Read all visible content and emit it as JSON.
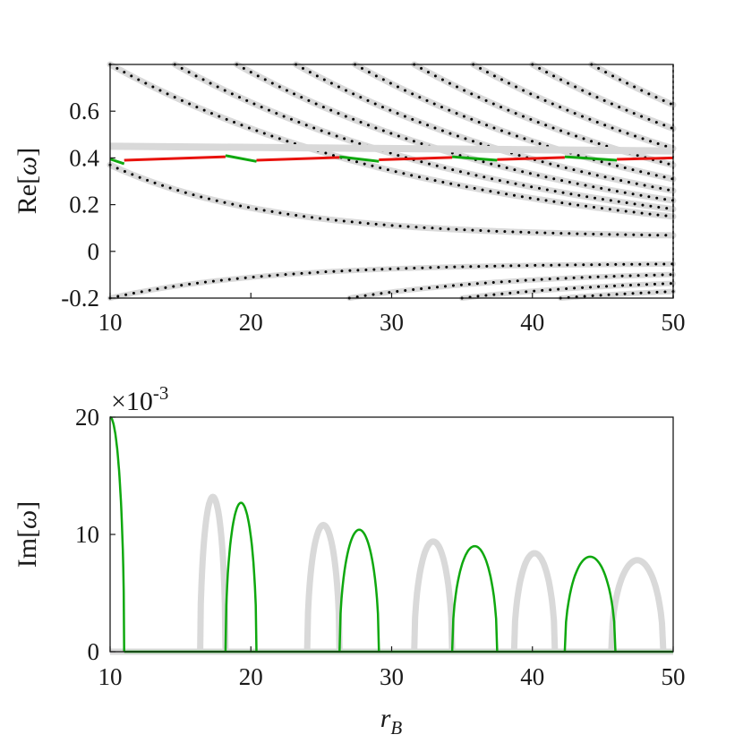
{
  "chart_data": [
    {
      "type": "line",
      "ylabel_main": "Re",
      "ylabel_arg": "ω",
      "xlim": [
        10,
        50
      ],
      "ylim": [
        -0.2,
        0.8
      ],
      "xticks": [
        10,
        20,
        30,
        40,
        50
      ],
      "yticks": [
        -0.2,
        0,
        0.2,
        0.4,
        0.6
      ],
      "ytick_labels": [
        "-0.2",
        "0",
        "0.2",
        "0.4",
        "0.6"
      ],
      "colors": {
        "background_modes": "#d9d9d9",
        "dotted_modes": "#000000",
        "red": "#e8120c",
        "green": "#0fa80f"
      },
      "background_modes_upper": [
        {
          "r0": 10.0,
          "A": 0.8
        },
        {
          "r0": 14.6,
          "A": 0.8
        },
        {
          "r0": 19.0,
          "A": 0.8
        },
        {
          "r0": 23.2,
          "A": 0.8
        },
        {
          "r0": 27.4,
          "A": 0.8
        },
        {
          "r0": 31.6,
          "A": 0.8
        },
        {
          "r0": 35.8,
          "A": 0.8
        },
        {
          "r0": 40.0,
          "A": 0.8
        },
        {
          "r0": 44.2,
          "A": 0.8
        }
      ],
      "mode_decay_constant": 0.042,
      "horizontal_band": {
        "y_start": 0.45,
        "y_end": 0.43
      },
      "green_segments": [
        {
          "x": [
            10.0,
            11.0
          ],
          "y": [
            0.395,
            0.375
          ]
        },
        {
          "x": [
            18.2,
            20.4
          ],
          "y": [
            0.41,
            0.385
          ]
        },
        {
          "x": [
            26.3,
            29.1
          ],
          "y": [
            0.405,
            0.385
          ]
        },
        {
          "x": [
            34.3,
            37.5
          ],
          "y": [
            0.405,
            0.39
          ]
        },
        {
          "x": [
            42.3,
            46.0
          ],
          "y": [
            0.405,
            0.39
          ]
        }
      ],
      "red_segments": [
        {
          "x": [
            11.0,
            18.2
          ],
          "y": [
            0.39,
            0.405
          ]
        },
        {
          "x": [
            20.4,
            26.3
          ],
          "y": [
            0.39,
            0.402
          ]
        },
        {
          "x": [
            29.1,
            34.3
          ],
          "y": [
            0.392,
            0.402
          ]
        },
        {
          "x": [
            37.5,
            42.3
          ],
          "y": [
            0.393,
            0.402
          ]
        },
        {
          "x": [
            46.0,
            50.0
          ],
          "y": [
            0.394,
            0.4
          ]
        }
      ]
    },
    {
      "type": "line",
      "ylabel_main": "Im",
      "ylabel_arg": "ω",
      "xlabel_main": "r",
      "xlabel_sub": "B",
      "exponent_label": "×10",
      "exponent_power": "-3",
      "xlim": [
        10,
        50
      ],
      "ylim": [
        0,
        20
      ],
      "xticks": [
        10,
        20,
        30,
        40,
        50
      ],
      "yticks": [
        0,
        10,
        20
      ],
      "colors": {
        "gray": "#d9d9d9",
        "green": "#0fa80f"
      },
      "gray_bumps": [
        {
          "x0": 16.4,
          "x1": 18.2,
          "peak": 13.2
        },
        {
          "x0": 24.0,
          "x1": 26.3,
          "peak": 10.8
        },
        {
          "x0": 31.6,
          "x1": 34.3,
          "peak": 9.4
        },
        {
          "x0": 38.7,
          "x1": 41.6,
          "peak": 8.4
        },
        {
          "x0": 45.6,
          "x1": 49.3,
          "peak": 7.8
        }
      ],
      "green_bumps": [
        {
          "x0": 18.2,
          "x1": 20.4,
          "peak": 12.7
        },
        {
          "x0": 26.3,
          "x1": 29.1,
          "peak": 10.4
        },
        {
          "x0": 34.3,
          "x1": 37.5,
          "peak": 9.0
        },
        {
          "x0": 42.3,
          "x1": 45.9,
          "peak": 8.1
        }
      ],
      "green_initial_decay": {
        "x0": 10.0,
        "x1": 11.0,
        "y0": 20.0
      }
    }
  ]
}
